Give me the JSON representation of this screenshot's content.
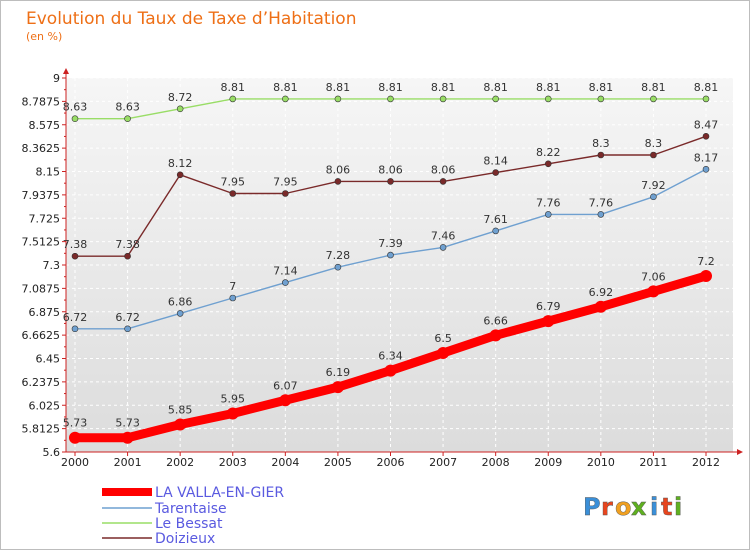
{
  "chart_data": {
    "type": "line",
    "title": "Evolution du Taux de Taxe d’Habitation",
    "subtitle": "(en %)",
    "x": [
      "2000",
      "2001",
      "2002",
      "2003",
      "2004",
      "2005",
      "2006",
      "2007",
      "2008",
      "2009",
      "2010",
      "2011",
      "2012"
    ],
    "y_ticks": [
      "5.6",
      "5.8125",
      "6.025",
      "6.2375",
      "6.45",
      "6.6625",
      "6.875",
      "7.0875",
      "7.3",
      "7.5125",
      "7.725",
      "7.9375",
      "8.15",
      "8.3625",
      "8.575",
      "8.7875",
      "9"
    ],
    "ylim": [
      5.6,
      9
    ],
    "grid": true,
    "legend_position": "bottom-left",
    "series": [
      {
        "name": "LA VALLA-EN-GIER",
        "color": "#ff0000",
        "values": [
          5.73,
          5.73,
          5.85,
          5.95,
          6.07,
          6.19,
          6.34,
          6.5,
          6.66,
          6.79,
          6.92,
          7.06,
          7.2
        ],
        "labels": [
          "5.73",
          "5.73",
          "5.85",
          "5.95",
          "6.07",
          "6.19",
          "6.34",
          "6.5",
          "6.66",
          "6.79",
          "6.92",
          "7.06",
          "7.2"
        ]
      },
      {
        "name": "Tarentaise",
        "color": "#6fa0d0",
        "values": [
          6.72,
          6.72,
          6.86,
          7,
          7.14,
          7.28,
          7.39,
          7.46,
          7.61,
          7.76,
          7.76,
          7.92,
          8.17
        ],
        "labels": [
          "6.72",
          "6.72",
          "6.86",
          "7",
          "7.14",
          "7.28",
          "7.39",
          "7.46",
          "7.61",
          "7.76",
          "7.76",
          "7.92",
          "8.17"
        ]
      },
      {
        "name": "Le Bessat",
        "color": "#99dd66",
        "values": [
          8.63,
          8.63,
          8.72,
          8.81,
          8.81,
          8.81,
          8.81,
          8.81,
          8.81,
          8.81,
          8.81,
          8.81,
          8.81
        ],
        "labels": [
          "8.63",
          "8.63",
          "8.72",
          "8.81",
          "8.81",
          "8.81",
          "8.81",
          "8.81",
          "8.81",
          "8.81",
          "8.81",
          "8.81",
          "8.81"
        ]
      },
      {
        "name": "Doizieux",
        "color": "#7a2a2a",
        "values": [
          7.38,
          7.38,
          8.12,
          7.95,
          7.95,
          8.06,
          8.06,
          8.06,
          8.14,
          8.22,
          8.3,
          8.3,
          8.47
        ],
        "labels": [
          "7.38",
          "7.38",
          "8.12",
          "7.95",
          "7.95",
          "8.06",
          "8.06",
          "8.06",
          "8.14",
          "8.22",
          "8.3",
          "8.3",
          "8.47"
        ]
      }
    ]
  },
  "logo": {
    "letters": [
      "P",
      "r",
      "o",
      "x",
      "i",
      "t",
      "i"
    ],
    "colors": [
      "#3a8fd8",
      "#e8451e",
      "#f0a020",
      "#5fb020",
      "#3a8fd8",
      "#e8451e",
      "#5fb020"
    ]
  }
}
